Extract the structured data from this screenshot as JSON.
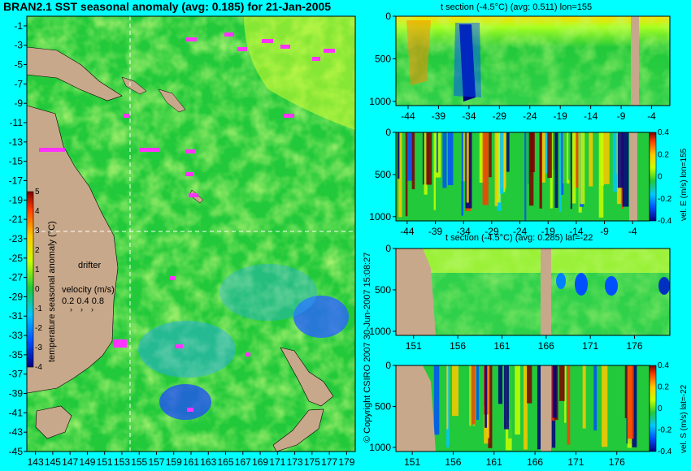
{
  "title": "BRAN2.1 SST seasonal anomaly (avg: 0.185) for 21-Jan-2005",
  "copyright": "© Copyright CSIRO 2007  30-Jun-2007 15:08:27",
  "colors": {
    "background": "#00ffff",
    "land": "#c8a88a",
    "map_sea": "#22c93a",
    "marker": "#ff33ff"
  },
  "map": {
    "lon_ticks": [
      "143",
      "145",
      "147",
      "149",
      "151",
      "153",
      "155",
      "157",
      "159",
      "161",
      "163",
      "165",
      "167",
      "169",
      "171",
      "173",
      "175",
      "177",
      "179"
    ],
    "lat_ticks": [
      "-1",
      "-3",
      "-5",
      "-7",
      "-9",
      "-11",
      "-13",
      "-15",
      "-17",
      "-19",
      "-21",
      "-23",
      "-25",
      "-27",
      "-29",
      "-31",
      "-33",
      "-35",
      "-37",
      "-39",
      "-41",
      "-43",
      "-45"
    ],
    "colorbar": {
      "label": "temperature seasonal anomaly (°C)",
      "ticks": [
        "5",
        "4",
        "3",
        "2",
        "1",
        "0",
        "-1",
        "-2",
        "-3",
        "-4"
      ]
    },
    "legend": {
      "drifter": "drifter",
      "velocity_label": "velocity (m/s)",
      "velocity_values": "0.2 0.4 0.8"
    },
    "section_lines": {
      "lon": 155,
      "lat": -22
    }
  },
  "panels": [
    {
      "title": "t section (-4.5°C) (avg: 0.511) lon=155",
      "x_ticks": [
        "-44",
        "-39",
        "-34",
        "-29",
        "-24",
        "-19",
        "-14",
        "-9",
        "-4"
      ],
      "y_ticks": [
        "0",
        "500",
        "1000"
      ],
      "y_label": "",
      "cbar_ticks": []
    },
    {
      "title": "",
      "x_ticks": [
        "-44",
        "-39",
        "-34",
        "-29",
        "-24",
        "-19",
        "-14",
        "-9",
        "-4"
      ],
      "y_ticks": [
        "0",
        "500",
        "1000"
      ],
      "y_label": "vel. E (m/s) lon=155",
      "cbar_ticks": [
        "0.4",
        "0.2",
        "0",
        "-0.2",
        "-0.4"
      ]
    },
    {
      "title": "t section (-4.5°C) (avg: 0.285) lat=-22",
      "x_ticks": [
        "151",
        "156",
        "161",
        "166",
        "171",
        "176"
      ],
      "y_ticks": [
        "0",
        "500",
        "1000"
      ],
      "y_label": "",
      "cbar_ticks": []
    },
    {
      "title": "",
      "x_ticks": [
        "151",
        "156",
        "161",
        "166",
        "171",
        "176"
      ],
      "y_ticks": [
        "0",
        "500",
        "1000"
      ],
      "y_label": "vel. S (m/s) lat=-22",
      "cbar_ticks": [
        "0.4",
        "0.2",
        "0",
        "-0.2",
        "-0.4"
      ]
    }
  ],
  "chart_data": [
    {
      "type": "heatmap",
      "title": "BRAN2.1 SST seasonal anomaly (avg: 0.185) for 21-Jan-2005",
      "xlabel": "",
      "ylabel": "",
      "xlim": [
        142,
        180
      ],
      "ylim": [
        -45,
        0
      ],
      "color_range": [
        -4,
        5
      ]
    },
    {
      "type": "heatmap",
      "title": "t section (-4.5°C) (avg: 0.511) lon=155",
      "xlim": [
        -46,
        -1
      ],
      "ylim": [
        1050,
        0
      ]
    },
    {
      "type": "heatmap",
      "title": "",
      "ylabel": "vel. E (m/s) lon=155",
      "xlim": [
        -46,
        -1
      ],
      "ylim": [
        1050,
        0
      ],
      "color_range": [
        -0.4,
        0.4
      ]
    },
    {
      "type": "heatmap",
      "title": "t section (-4.5°C) (avg: 0.285) lat=-22",
      "xlim": [
        149,
        180
      ],
      "ylim": [
        1050,
        0
      ]
    },
    {
      "type": "heatmap",
      "title": "",
      "ylabel": "vel. S (m/s) lat=-22",
      "xlim": [
        149,
        180
      ],
      "ylim": [
        1050,
        0
      ],
      "color_range": [
        -0.4,
        0.4
      ]
    }
  ]
}
